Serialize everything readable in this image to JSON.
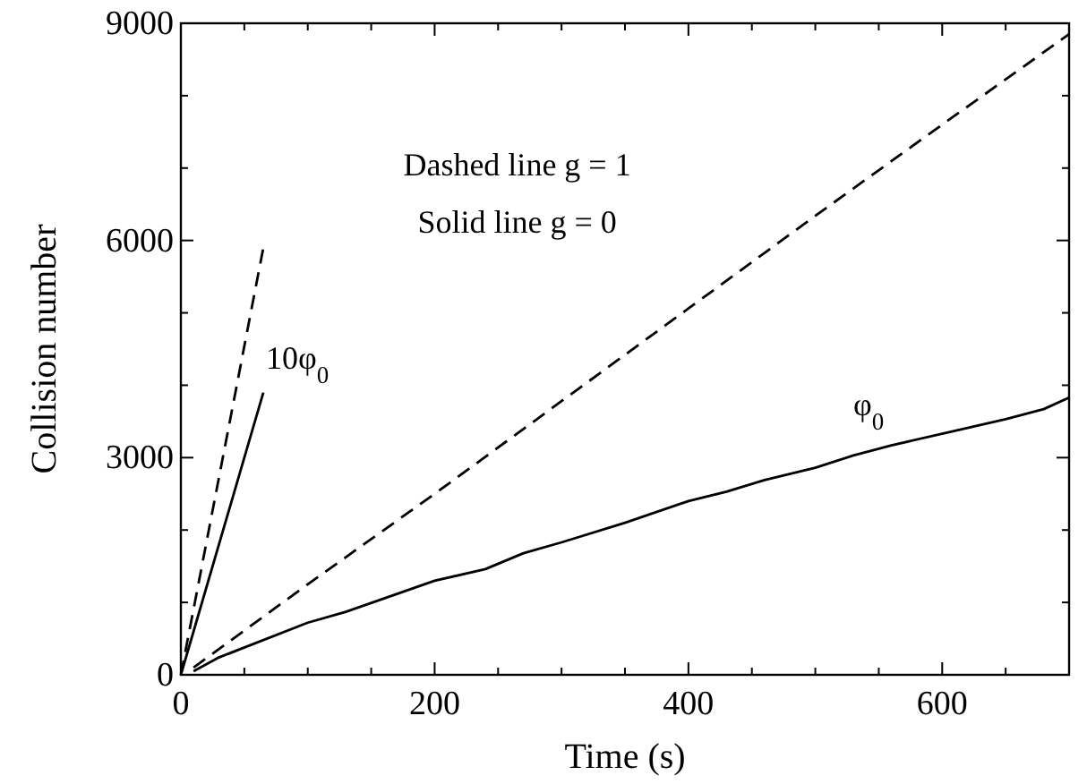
{
  "chart_data": {
    "type": "line",
    "xlabel": "Time (s)",
    "ylabel": "Collision number",
    "xlim": [
      0,
      700
    ],
    "ylim": [
      0,
      9000
    ],
    "xticks": [
      0,
      200,
      400,
      600
    ],
    "yticks": [
      0,
      3000,
      6000,
      9000
    ],
    "grid": false,
    "series": [
      {
        "color": "#000000",
        "line_style": "dashed",
        "x": [
          10,
          100,
          200,
          300,
          400,
          500,
          600,
          700
        ],
        "values": [
          100,
          1250,
          2500,
          3780,
          5060,
          6340,
          7600,
          8850
        ]
      },
      {
        "color": "#000000",
        "line_style": "solid",
        "x": [
          10,
          30,
          100,
          130,
          200,
          240,
          270,
          300,
          350,
          400,
          430,
          460,
          500,
          530,
          560,
          610,
          650,
          680,
          700
        ],
        "values": [
          50,
          240,
          720,
          870,
          1300,
          1460,
          1680,
          1830,
          2100,
          2400,
          2530,
          2690,
          2860,
          3030,
          3170,
          3370,
          3530,
          3670,
          3830
        ]
      },
      {
        "color": "#000000",
        "line_style": "dashed",
        "x": [
          0,
          65
        ],
        "values": [
          0,
          5900
        ]
      },
      {
        "color": "#000000",
        "line_style": "solid",
        "x": [
          0,
          65
        ],
        "values": [
          0,
          3900
        ]
      }
    ],
    "annotations": [
      "Dashed line g = 1",
      "Solid line g = 0",
      "10φ$_{0}$",
      "φ$_{0}$"
    ]
  }
}
